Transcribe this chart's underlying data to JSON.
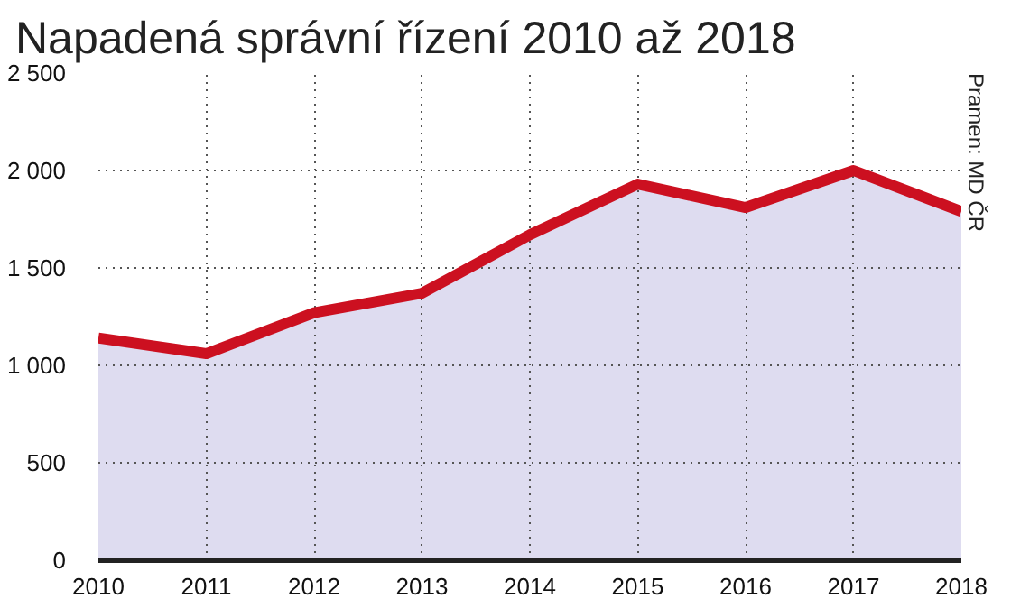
{
  "chart_data": {
    "type": "area",
    "title": "Napadená správní řízení 2010 až 2018",
    "x": [
      2010,
      2011,
      2012,
      2013,
      2014,
      2015,
      2016,
      2017,
      2018
    ],
    "series": [
      {
        "color": "#cc1020",
        "values": [
          1140,
          1060,
          1270,
          1370,
          1670,
          1930,
          1810,
          2000,
          1790
        ]
      }
    ],
    "xlim": [
      2010,
      2018
    ],
    "xticks": [
      2010,
      2011,
      2012,
      2013,
      2014,
      2015,
      2016,
      2017,
      2018
    ],
    "ylim": [
      0,
      2500
    ],
    "yticks": [
      {
        "value": 0,
        "label": "0"
      },
      {
        "value": 500,
        "label": "500"
      },
      {
        "value": 1000,
        "label": "1 000"
      },
      {
        "value": 1500,
        "label": "1 500"
      },
      {
        "value": 2000,
        "label": "2 000"
      },
      {
        "value": 2500,
        "label": "2 500"
      }
    ],
    "grid": true,
    "line_style": "solid",
    "annotations": [
      "Pramen: MD ČR"
    ]
  }
}
